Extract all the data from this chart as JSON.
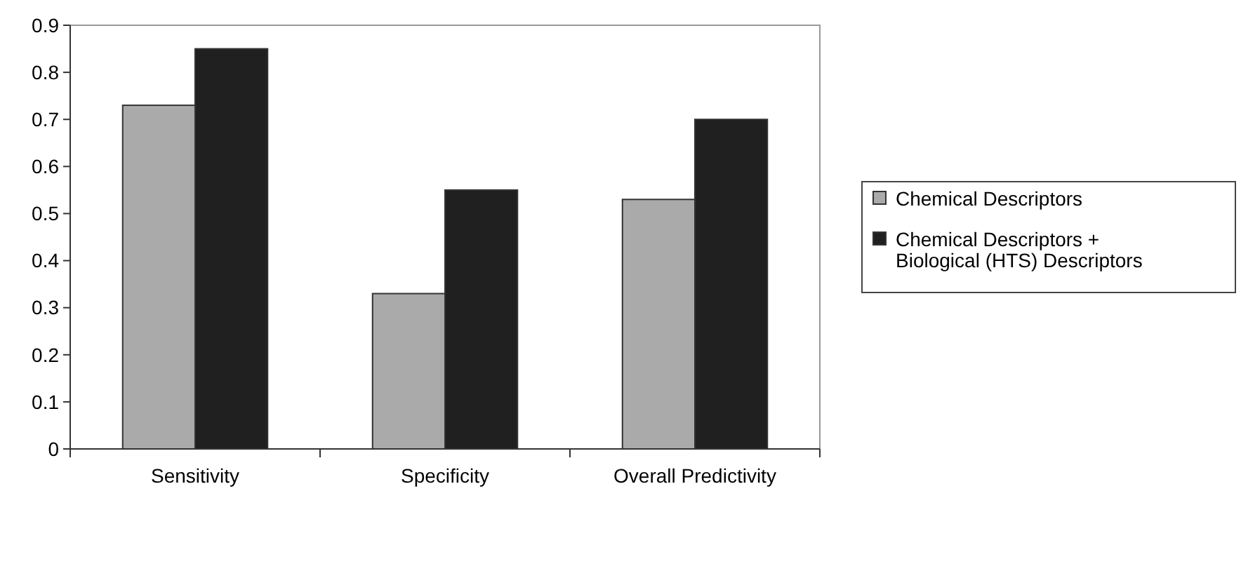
{
  "chart_data": {
    "type": "bar",
    "categories": [
      "Sensitivity",
      "Specificity",
      "Overall Predictivity"
    ],
    "series": [
      {
        "name": "Chemical Descriptors",
        "color": "#aaaaaa",
        "values": [
          0.73,
          0.33,
          0.53
        ]
      },
      {
        "name": "Chemical Descriptors + Biological (HTS) Descriptors",
        "color": "#202020",
        "values": [
          0.85,
          0.55,
          0.7
        ]
      }
    ],
    "ylim": [
      0,
      0.9
    ],
    "yticks": [
      0,
      0.1,
      0.2,
      0.3,
      0.4,
      0.5,
      0.6,
      0.7,
      0.8,
      0.9
    ],
    "grid": false,
    "legend": "right"
  }
}
